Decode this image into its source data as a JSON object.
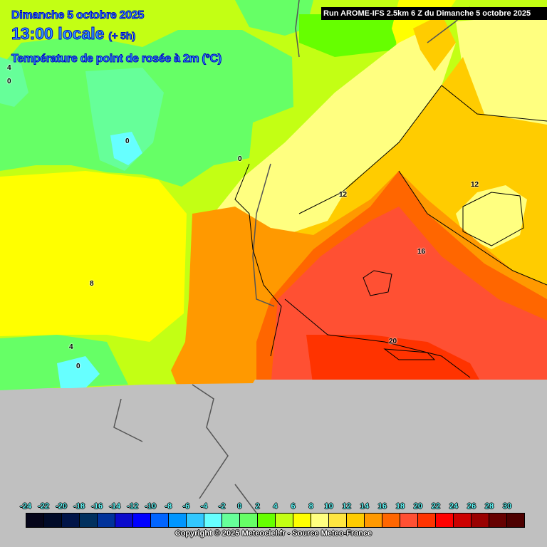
{
  "header": {
    "date": "Dimanche 5 octobre 2025",
    "time": "13:00 locale",
    "offset": "(+ 5h)",
    "variable": "Température de point de rosée à 2m (°C)",
    "run": "Run AROME-IFS 2.5km 6 Z du Dimanche 5 octobre 2025"
  },
  "contour_labels": [
    "4",
    "0",
    "0",
    "0",
    "12",
    "12",
    "16",
    "8",
    "20",
    "4",
    "0"
  ],
  "legend": {
    "labels": [
      "-24",
      "-22",
      "-20",
      "-18",
      "-16",
      "-14",
      "-12",
      "-10",
      "-8",
      "-6",
      "-4",
      "-2",
      "0",
      "2",
      "4",
      "6",
      "8",
      "10",
      "12",
      "14",
      "16",
      "18",
      "20",
      "22",
      "24",
      "26",
      "28",
      "30"
    ],
    "colors": [
      "#05051a",
      "#000a28",
      "#001448",
      "#00305e",
      "#00329a",
      "#0a0acc",
      "#0000ff",
      "#0064ff",
      "#0096ff",
      "#32c8ff",
      "#66ffff",
      "#66ff99",
      "#66ff66",
      "#66ff00",
      "#c3ff14",
      "#ffff00",
      "#ffff80",
      "#ffe640",
      "#ffcc00",
      "#ff9900",
      "#ff6600",
      "#ff5033",
      "#ff3300",
      "#ff0000",
      "#cc0000",
      "#990000",
      "#660000",
      "#4d0000"
    ]
  },
  "footer": {
    "copyright": "Copyright © 2025 Meteociel.fr - Source Meteo-France"
  },
  "no_data_color": "#c0c0c0"
}
